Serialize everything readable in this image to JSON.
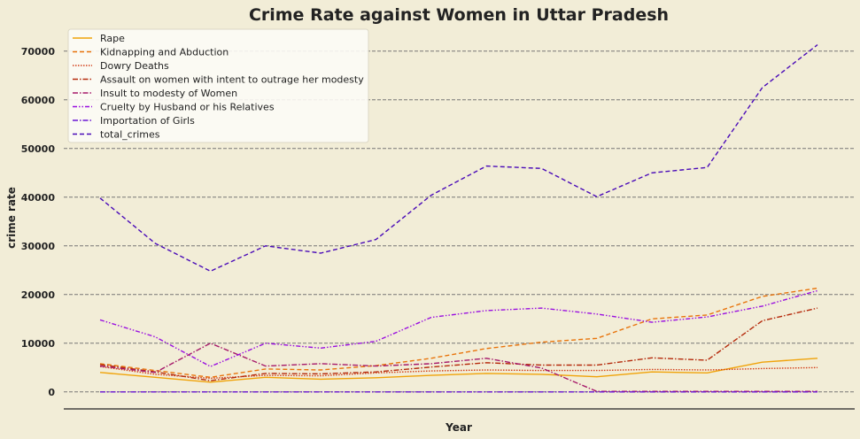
{
  "chart_data": {
    "type": "line",
    "title": "Crime Rate against Women in Uttar Pradesh",
    "xlabel": "Year",
    "ylabel": "crime rate",
    "x": [
      1,
      2,
      3,
      4,
      5,
      6,
      7,
      8,
      9,
      10,
      11,
      12,
      13,
      14
    ],
    "xticks_shown": false,
    "ylim": [
      -3500,
      74500
    ],
    "yticks": [
      0,
      10000,
      20000,
      30000,
      40000,
      50000,
      60000,
      70000
    ],
    "grid": "horizontal-dashed",
    "legend_position": "top-left",
    "colors": {
      "background": "#f2edd7",
      "legend_bg": "#fcfbf6",
      "grid": "#777777"
    },
    "series": [
      {
        "name": "Rape",
        "color": "#f0a30a",
        "dash": "solid",
        "values": [
          4000,
          3000,
          2000,
          3000,
          2600,
          2900,
          3400,
          3800,
          3600,
          3100,
          4100,
          3900,
          6100,
          6900
        ]
      },
      {
        "name": "Kidnapping and Abduction",
        "color": "#e8740c",
        "dash": "dashed",
        "values": [
          5800,
          4400,
          3000,
          4700,
          4500,
          5400,
          6900,
          8900,
          10200,
          11000,
          15000,
          15800,
          19600,
          21300
        ]
      },
      {
        "name": "Dowry Deaths",
        "color": "#d2401a",
        "dash": "dotted",
        "values": [
          5200,
          3600,
          2800,
          3400,
          3300,
          3900,
          4300,
          4500,
          4400,
          4400,
          4600,
          4500,
          4800,
          5000
        ]
      },
      {
        "name": "Assault on women with intent to outrage her modesty",
        "color": "#b52a0c",
        "dash": "dashdot",
        "values": [
          5600,
          4100,
          2300,
          3800,
          3700,
          4100,
          5100,
          6000,
          5500,
          5500,
          7000,
          6500,
          14600,
          17200
        ]
      },
      {
        "name": "Insult to modesty of Women",
        "color": "#a6196a",
        "dash": "dashdot",
        "values": [
          5300,
          4000,
          10000,
          5300,
          5800,
          5300,
          5800,
          6900,
          4900,
          100,
          100,
          100,
          100,
          100
        ]
      },
      {
        "name": "Cruelty by Husband or his Relatives",
        "color": "#9a0fe0",
        "dash": "dashdotdot",
        "values": [
          14800,
          11300,
          5200,
          10000,
          9000,
          10400,
          15300,
          16700,
          17200,
          16000,
          14300,
          15400,
          17600,
          20800
        ]
      },
      {
        "name": "Importation of Girls",
        "color": "#6a14d4",
        "dash": "dashdot",
        "values": [
          0,
          0,
          0,
          0,
          0,
          0,
          0,
          0,
          0,
          0,
          0,
          0,
          0,
          0
        ]
      },
      {
        "name": "total_crimes",
        "color": "#4a0bb8",
        "dash": "dashed",
        "values": [
          39800,
          30500,
          24800,
          30000,
          28500,
          31300,
          40400,
          46400,
          45900,
          40100,
          45000,
          46100,
          62500,
          71300
        ]
      }
    ]
  }
}
